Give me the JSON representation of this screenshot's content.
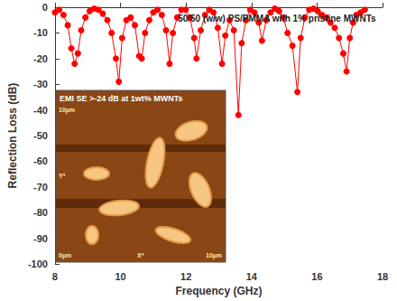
{
  "chart_data": {
    "type": "line",
    "title": "50/50 (w/w) PS/PMMA with 1% pristine MWNTs",
    "x_label": "Frequency (GHz)",
    "y_label": "Reflection Loss (dB)",
    "color": "#ff0000",
    "marker": "circle",
    "grid": false,
    "xlim": [
      8,
      18
    ],
    "xticks": [
      8,
      10,
      12,
      14,
      16,
      18
    ],
    "ylim": [
      -100,
      0
    ],
    "yticks": [
      -100,
      -90,
      -80,
      -70,
      -60,
      -50,
      -40,
      -30,
      -20,
      -10,
      0
    ],
    "x": [
      8.0,
      8.13,
      8.26,
      8.39,
      8.5,
      8.6,
      8.7,
      8.8,
      8.93,
      9.06,
      9.2,
      9.33,
      9.46,
      9.6,
      9.73,
      9.86,
      9.95,
      10.05,
      10.18,
      10.31,
      10.44,
      10.57,
      10.65,
      10.75,
      10.88,
      11.0,
      11.13,
      11.26,
      11.39,
      11.5,
      11.6,
      11.73,
      11.86,
      11.99,
      12.12,
      12.25,
      12.32,
      12.45,
      12.58,
      12.71,
      12.84,
      12.97,
      13.1,
      13.2,
      13.33,
      13.46,
      13.6,
      13.7,
      13.83,
      13.96,
      14.09,
      14.22,
      14.32,
      14.45,
      14.58,
      14.71,
      14.84,
      14.97,
      15.1,
      15.25,
      15.4,
      15.5,
      15.63,
      15.76,
      15.89,
      16.02,
      16.15,
      16.28,
      16.41,
      16.54,
      16.67,
      16.8,
      16.9,
      17.0,
      17.1,
      17.2,
      17.33,
      17.46
    ],
    "values": [
      -2,
      -1,
      -3,
      -7,
      -16,
      -22,
      -18,
      -9,
      -4,
      -1.5,
      -0.5,
      -1,
      -2.5,
      -5,
      -10,
      -20,
      -29,
      -12,
      -5,
      -4,
      -7,
      -19,
      -20,
      -10,
      -5,
      -2,
      -1,
      -3,
      -9,
      -22,
      -10,
      -4,
      -1,
      -1,
      -4,
      -12,
      -20,
      -9,
      -3,
      -1,
      -2,
      -8,
      -22,
      -11,
      -5,
      -9,
      -42,
      -14,
      -5,
      -1,
      -2,
      -6,
      -13,
      -5,
      -2,
      -0.5,
      -1.5,
      -4,
      -10,
      -15,
      -33,
      -12,
      -4,
      -1,
      -0.5,
      -1.5,
      -3,
      -4,
      -6,
      -8,
      -12,
      -18,
      -25,
      -12,
      -6,
      -3,
      -2,
      -1
    ],
    "inset": {
      "text": "EMI SE >-24 dB at 1wt% MWNTs",
      "y_top": "10µm",
      "y_label": "Y*",
      "origin": "0µm",
      "x_label": "X*",
      "x_right": "10µm"
    }
  }
}
